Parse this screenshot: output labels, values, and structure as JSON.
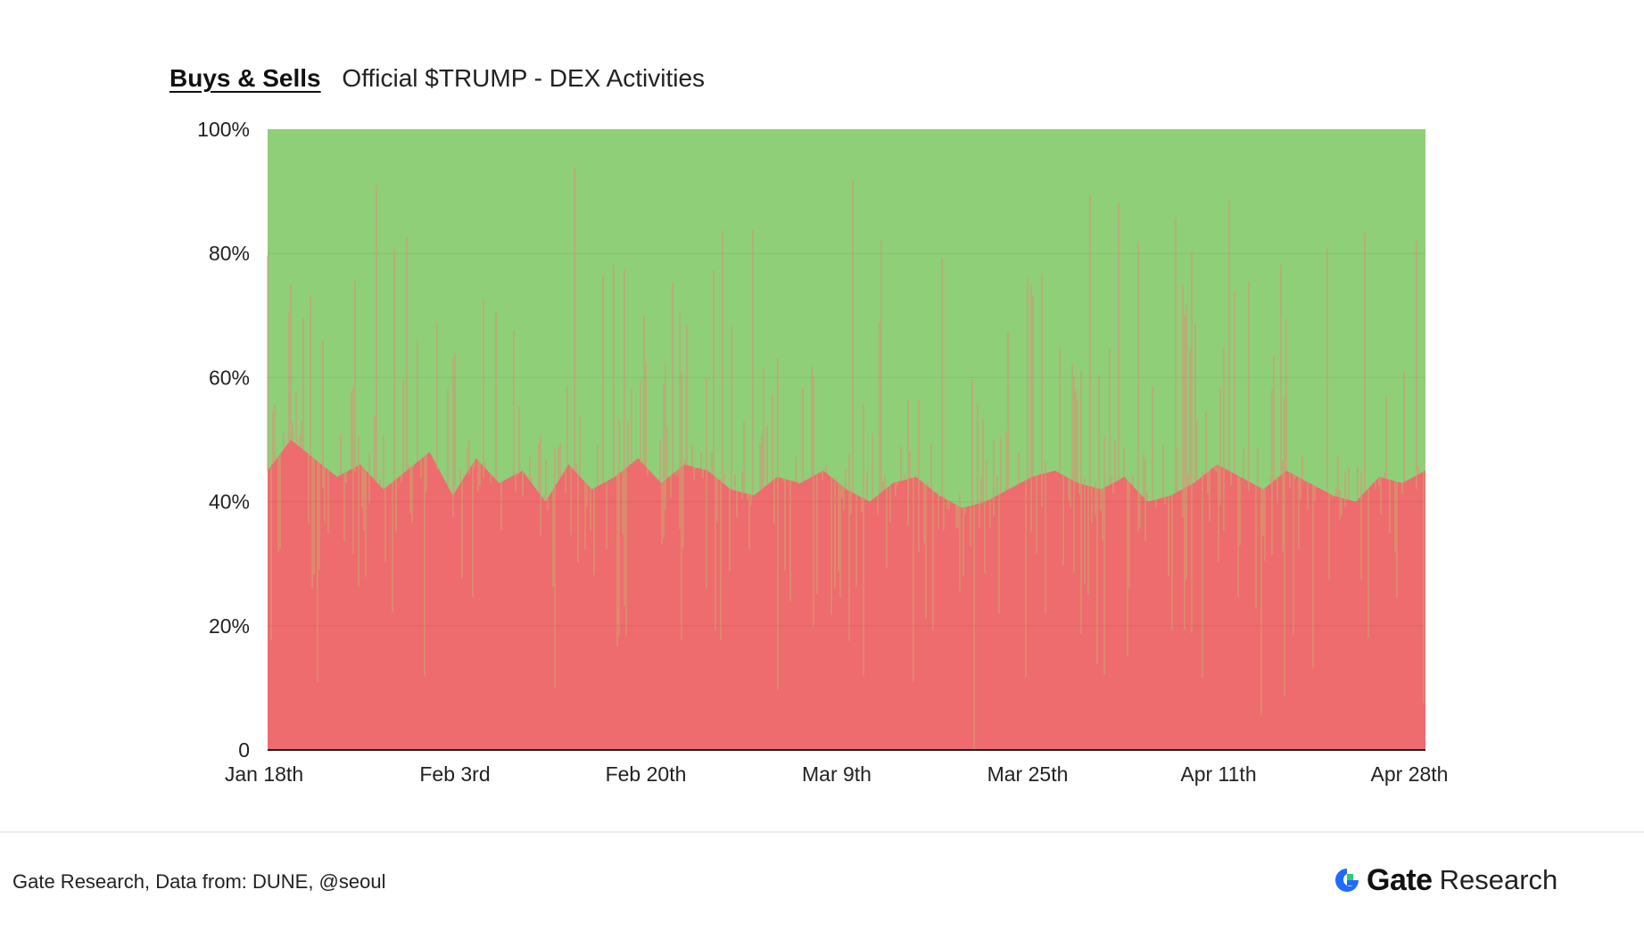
{
  "header": {
    "tab_label": "Buys & Sells",
    "subtitle": "Official $TRUMP - DEX Activities"
  },
  "footer": {
    "source": "Gate Research, Data from: DUNE, @seoul",
    "brand_name": "Gate",
    "brand_suffix": "Research"
  },
  "colors": {
    "buy": "#8fcf78",
    "sell": "#ee6b6e",
    "grid": "#e4e4e4",
    "axis": "#222222",
    "brand_blue": "#1f6bff",
    "brand_green": "#2ecc71"
  },
  "chart_data": {
    "type": "area",
    "stacked": true,
    "normalized": true,
    "y_ticks": [
      "0",
      "20%",
      "40%",
      "60%",
      "80%",
      "100%"
    ],
    "ylim": [
      0,
      100
    ],
    "x_ticks": [
      "Jan 18th",
      "Feb 3rd",
      "Feb 20th",
      "Mar 9th",
      "Mar 25th",
      "Apr 11th",
      "Apr 28th"
    ],
    "x_range": [
      "2025-01-18",
      "2025-04-28"
    ],
    "legend": "none",
    "grid": true,
    "series": [
      {
        "name": "Sells",
        "color": "#ee6b6e",
        "dates": [
          "2025-01-18",
          "2025-01-20",
          "2025-01-22",
          "2025-01-24",
          "2025-01-26",
          "2025-01-28",
          "2025-01-30",
          "2025-02-01",
          "2025-02-03",
          "2025-02-05",
          "2025-02-07",
          "2025-02-09",
          "2025-02-11",
          "2025-02-13",
          "2025-02-15",
          "2025-02-17",
          "2025-02-19",
          "2025-02-21",
          "2025-02-23",
          "2025-02-25",
          "2025-02-27",
          "2025-03-01",
          "2025-03-03",
          "2025-03-05",
          "2025-03-07",
          "2025-03-09",
          "2025-03-11",
          "2025-03-13",
          "2025-03-15",
          "2025-03-17",
          "2025-03-19",
          "2025-03-21",
          "2025-03-23",
          "2025-03-25",
          "2025-03-27",
          "2025-03-29",
          "2025-03-31",
          "2025-04-02",
          "2025-04-04",
          "2025-04-06",
          "2025-04-08",
          "2025-04-10",
          "2025-04-12",
          "2025-04-14",
          "2025-04-16",
          "2025-04-18",
          "2025-04-20",
          "2025-04-22",
          "2025-04-24",
          "2025-04-26",
          "2025-04-28"
        ],
        "values": [
          45,
          50,
          47,
          44,
          46,
          42,
          45,
          48,
          41,
          47,
          43,
          45,
          40,
          46,
          42,
          44,
          47,
          43,
          46,
          45,
          42,
          41,
          44,
          43,
          45,
          42,
          40,
          43,
          44,
          41,
          39,
          40,
          42,
          44,
          45,
          43,
          42,
          44,
          40,
          41,
          43,
          46,
          44,
          42,
          45,
          43,
          41,
          40,
          44,
          43,
          45
        ],
        "min": 0,
        "max": 65
      },
      {
        "name": "Buys",
        "color": "#8fcf78",
        "note_values": "complement to 100%"
      }
    ]
  }
}
